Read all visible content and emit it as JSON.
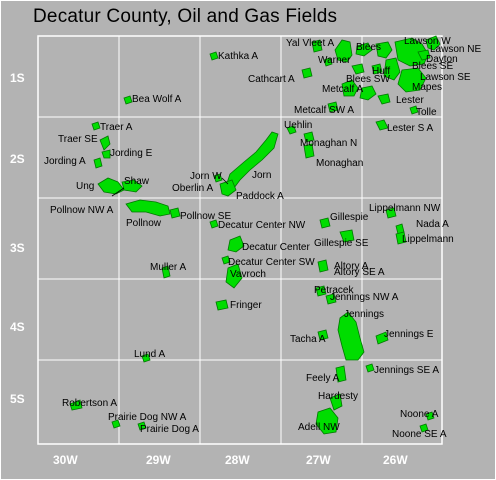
{
  "title": "Decatur County, Oil and Gas Fields",
  "colors": {
    "background": "#b3b3b3",
    "field": "#00dd00",
    "field_outline": "#006600",
    "grid": "#ffffff",
    "axis_text": "#ffffff"
  },
  "range_labels": [
    "30W",
    "29W",
    "28W",
    "27W",
    "26W"
  ],
  "township_labels": [
    "1S",
    "2S",
    "3S",
    "4S",
    "5S"
  ],
  "field_labels": [
    "Lawson W",
    "Lawson NE",
    "Yal Vleet A",
    "Blees",
    "Kathka A",
    "Warner",
    "Dayton",
    "Blees SE",
    "Huff",
    "Cathcart A",
    "Blees SW",
    "Lawson SE",
    "Mapes",
    "Metcalf A",
    "Bea Wolf A",
    "Lester",
    "Metcalf SW A",
    "Tolle",
    "Uehlin",
    "Traer A",
    "Lester S A",
    "Traer SE",
    "Monaghan N",
    "Jording E",
    "Jording A",
    "Monaghan",
    "Jorn W",
    "Jorn",
    "Shaw",
    "Ung",
    "Oberlin A",
    "Paddock A",
    "Pollnow NW A",
    "Lippelmann NW",
    "Pollnow SE",
    "Gillespie",
    "Nada A",
    "Pollnow",
    "Decatur Center NW",
    "Lippelmann",
    "Gillespie SE",
    "Decatur Center",
    "Decatur Center SW",
    "Altory A",
    "Muller A",
    "Altory SE A",
    "Vavroch",
    "Petracek",
    "Jennings NW A",
    "Fringer",
    "Jennings",
    "Jennings E",
    "Tacha A",
    "Lund A",
    "Jennings SE A",
    "Feely A",
    "Hardesty",
    "Robertson A",
    "Noone A",
    "Prairie Dog NW A",
    "Adell NW",
    "Prairie Dog A",
    "Noone SE A"
  ]
}
